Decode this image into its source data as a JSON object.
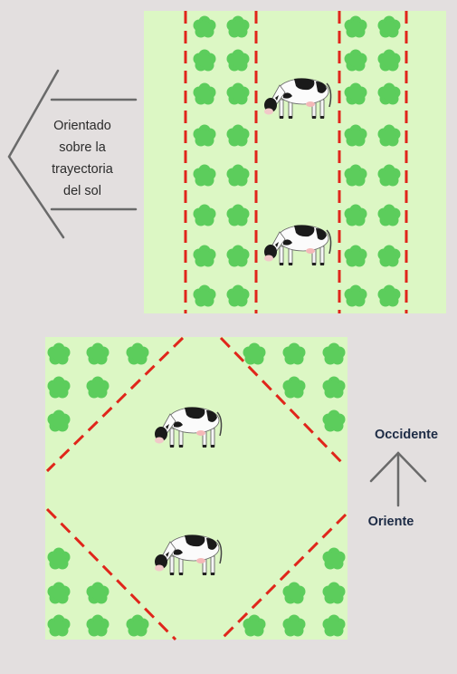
{
  "top_panel": {
    "label_line1": "Orientado",
    "label_line2": "sobre la",
    "label_line3": "trayectoria",
    "label_line4": "del sol"
  },
  "compass": {
    "west_label": "Occidente",
    "east_label": "Oriente"
  },
  "colors": {
    "background": "#e3dfdf",
    "field": "#dcf7c4",
    "tree": "#5ccd5c",
    "boundary": "#e0261b",
    "arrow": "#666666",
    "compass_text": "#1d2b45"
  },
  "icons": [
    "tree-icon",
    "cow-icon",
    "left-arrow-icon",
    "compass-arrow-icon"
  ]
}
